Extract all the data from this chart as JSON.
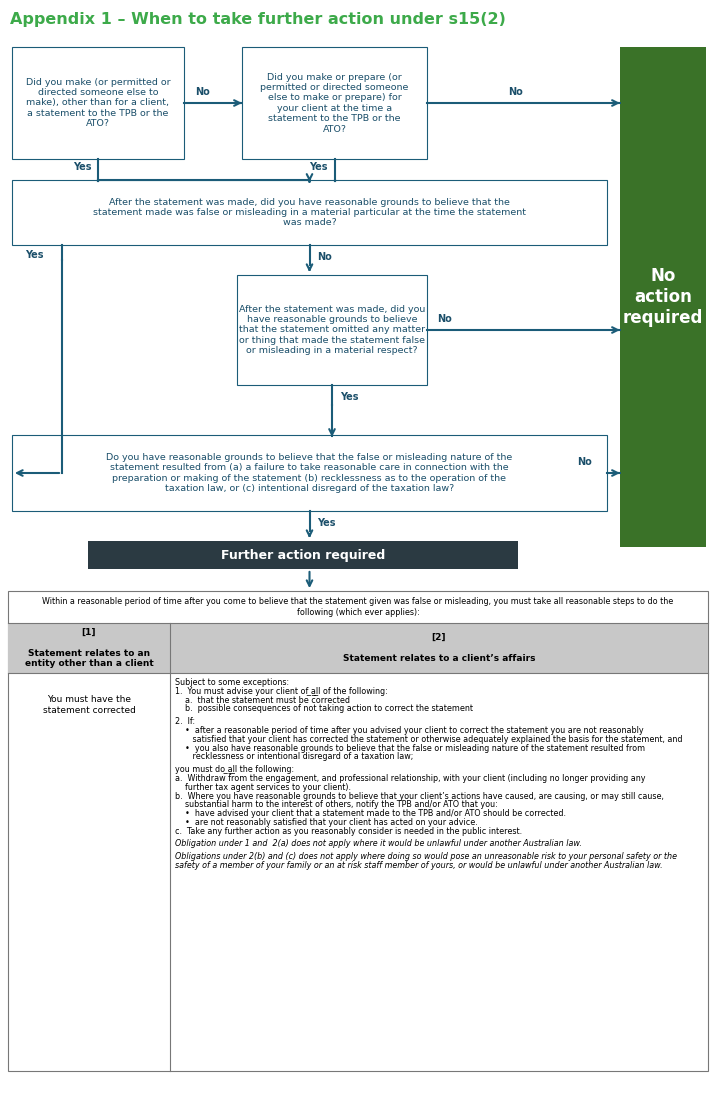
{
  "title": "Appendix 1 – When to take further action under s15(2)",
  "title_color": "#3DAA4A",
  "title_fontsize": 11.5,
  "box_border_color": "#1B5C78",
  "box_text_color": "#1B4F6A",
  "arrow_color": "#1B5C78",
  "yes_no_color": "#1B4F6A",
  "green_panel_color": "#3A7228",
  "dark_header_color": "#2B3A42",
  "box1_text": "Did you make (or permitted or\ndirected someone else to\nmake), other than for a client,\na statement to the TPB or the\nATO?",
  "box2_text": "Did you make or prepare (or\npermitted or directed someone\nelse to make or prepare) for\nyour client at the time a\nstatement to the TPB or the\nATO?",
  "box3_text": "After the statement was made, did you have reasonable grounds to believe that the\nstatement made was false or misleading in a material particular at the time the statement\nwas made?",
  "box4_text": "After the statement was made, did you\nhave reasonable grounds to believe\nthat the statement omitted any matter\nor thing that made the statement false\nor misleading in a material respect?",
  "box5_text": "Do you have reasonable grounds to believe that the false or misleading nature of the\nstatement resulted from (a) a failure to take reasonable care in connection with the\npreparation or making of the statement (b) recklessness as to the operation of the\ntaxation law, or (c) intentional disregard of the taxation law?",
  "further_action_text": "Further action required",
  "no_action_text": "No\naction\nrequired",
  "table_intro": "Within a reasonable period of time after you come to believe that the statement given was false or misleading, you must take all reasonable steps to do the\nfollowing (which ever applies):",
  "col1_header": "[1]\n\nStatement relates to an\nentity other than a client",
  "col2_header": "[2]\n\nStatement relates to a client’s affairs",
  "col1_body": "You must have the\nstatement corrected"
}
